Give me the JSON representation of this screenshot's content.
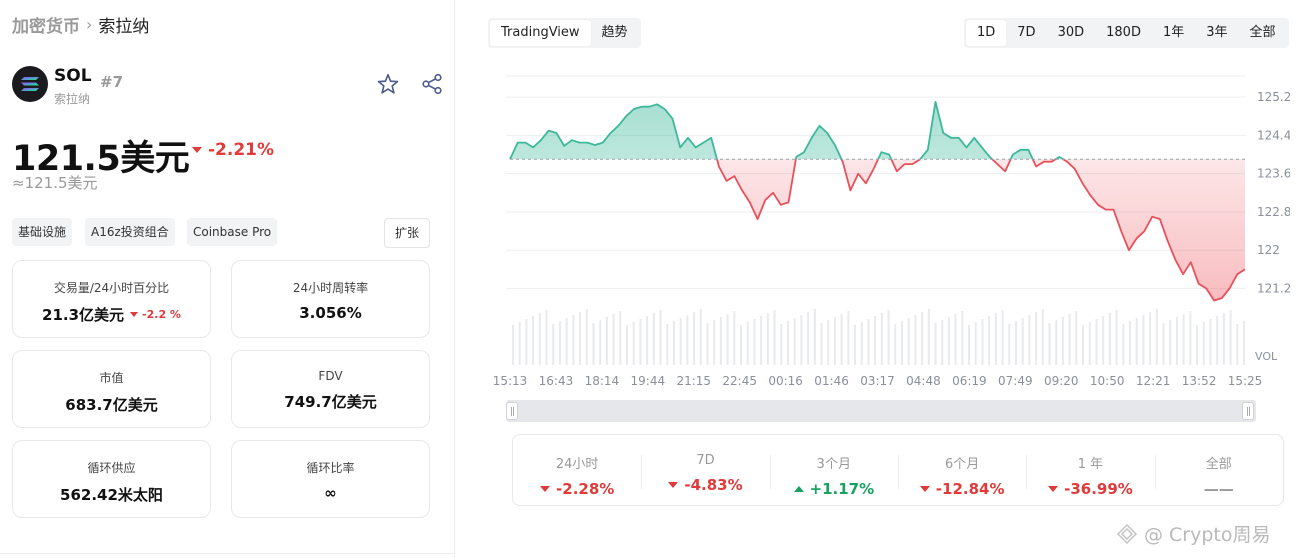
{
  "breadcrumb": {
    "parent": "加密货币",
    "separator": "›",
    "current": "索拉纳"
  },
  "coin": {
    "symbol": "SOL",
    "name": "索拉纳",
    "rank": "#7",
    "logo_icon": "solana-logo-icon"
  },
  "price": {
    "value": "121.5美元",
    "change": "-2.21%",
    "approx": "≈121.5美元"
  },
  "tags": [
    "基础设施",
    "A16z投资组合",
    "Coinbase Pro"
  ],
  "expand_label": "扩张",
  "stats": [
    {
      "label": "交易量/24小时百分比",
      "value": "21.3亿美元",
      "change": "-2.2 %"
    },
    {
      "label": "24小时周转率",
      "value": "3.056%"
    },
    {
      "label": "市值",
      "value": "683.7亿美元"
    },
    {
      "label": "FDV",
      "value": "749.7亿美元"
    },
    {
      "label": "循环供应",
      "value": "562.42米太阳"
    },
    {
      "label": "循环比率",
      "value": "∞"
    }
  ],
  "view_tabs": [
    {
      "label": "TradingView",
      "active": true
    },
    {
      "label": "趋势",
      "active": false
    }
  ],
  "range_tabs": [
    {
      "label": "1D",
      "active": true
    },
    {
      "label": "7D",
      "active": false
    },
    {
      "label": "30D",
      "active": false
    },
    {
      "label": "180D",
      "active": false
    },
    {
      "label": "1年",
      "active": false
    },
    {
      "label": "3年",
      "active": false
    },
    {
      "label": "全部",
      "active": false
    }
  ],
  "performance": [
    {
      "label": "24小时",
      "value": "-2.28%",
      "dir": "neg"
    },
    {
      "label": "7D",
      "value": "-4.83%",
      "dir": "neg"
    },
    {
      "label": "3个月",
      "value": "+1.17%",
      "dir": "pos"
    },
    {
      "label": "6个月",
      "value": "-12.84%",
      "dir": "neg"
    },
    {
      "label": "1 年",
      "value": "-36.99%",
      "dir": "neg"
    },
    {
      "label": "全部",
      "value": "——",
      "dir": "none"
    }
  ],
  "watermark": "@ Crypto周易",
  "colors": {
    "up": "#1aa063",
    "down": "#e03a3a",
    "line_up": "#3cb89a",
    "line_down": "#e8505a",
    "accent": "#2f6fe0"
  },
  "chart_data": {
    "type": "area",
    "baseline": 123.9,
    "ylim": [
      120.5,
      125.6
    ],
    "y_ticks": [
      125.2,
      124.4,
      123.6,
      122.8,
      122,
      121.2
    ],
    "y_tick_labels": [
      "125.2",
      "124.4",
      "123.6",
      "122.8",
      "122",
      "121.2"
    ],
    "volume_label": "VOL",
    "x_labels": [
      "15:13",
      "16:43",
      "18:14",
      "19:44",
      "21:15",
      "22:45",
      "00:16",
      "01:46",
      "03:17",
      "04:48",
      "06:19",
      "07:49",
      "09:20",
      "10:50",
      "12:21",
      "13:52",
      "15:25"
    ],
    "values": [
      123.9,
      124.25,
      124.25,
      124.15,
      124.3,
      124.5,
      124.45,
      124.18,
      124.3,
      124.25,
      124.25,
      124.2,
      124.25,
      124.45,
      124.6,
      124.8,
      124.95,
      125.0,
      125.0,
      125.05,
      124.95,
      124.75,
      124.15,
      124.35,
      124.15,
      124.25,
      124.35,
      123.75,
      123.45,
      123.55,
      123.25,
      123.0,
      122.65,
      123.05,
      123.2,
      122.95,
      123.0,
      123.95,
      124.05,
      124.35,
      124.6,
      124.45,
      124.2,
      123.85,
      123.25,
      123.6,
      123.4,
      123.7,
      124.05,
      124.0,
      123.65,
      123.8,
      123.8,
      123.9,
      124.1,
      125.1,
      124.45,
      124.35,
      124.35,
      124.15,
      124.35,
      124.15,
      123.95,
      123.8,
      123.65,
      124.0,
      124.1,
      124.1,
      123.75,
      123.85,
      123.85,
      123.95,
      123.85,
      123.7,
      123.4,
      123.15,
      122.95,
      122.85,
      122.85,
      122.4,
      122.0,
      122.25,
      122.4,
      122.7,
      122.65,
      122.2,
      121.8,
      121.5,
      121.75,
      121.3,
      121.2,
      120.95,
      121.0,
      121.2,
      121.5,
      121.6
    ]
  }
}
